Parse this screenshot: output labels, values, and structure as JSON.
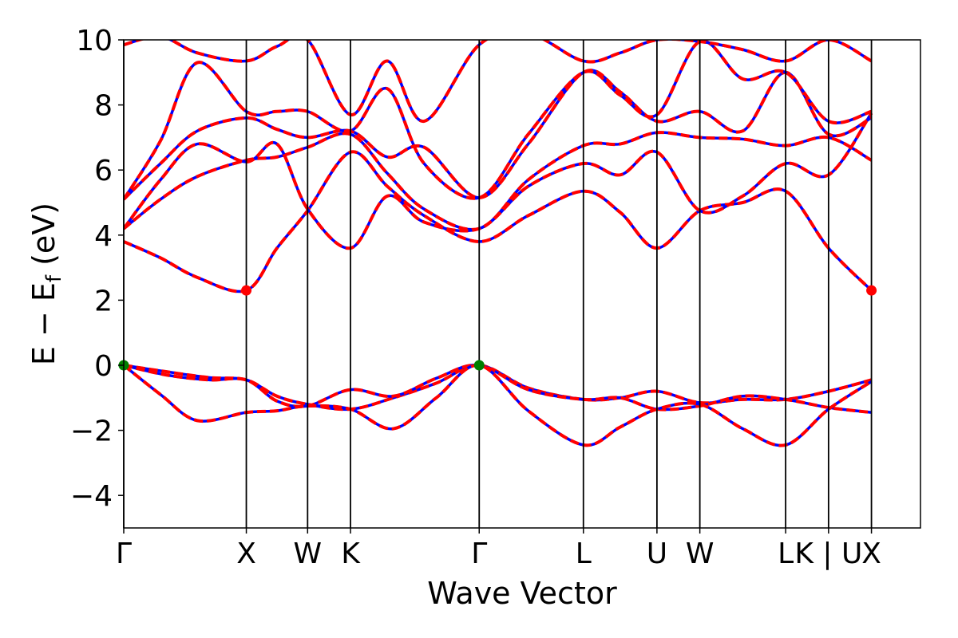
{
  "chart_data": {
    "type": "line",
    "xlabel": "Wave Vector",
    "ylabel": "E − E_f (eV)",
    "ylabel_parts": {
      "main": "E − E",
      "sub": "f",
      "unit": " (eV)"
    },
    "ylim": [
      -5,
      10
    ],
    "yticks": [
      -4,
      -2,
      0,
      2,
      4,
      6,
      8,
      10
    ],
    "ytick_labels": [
      "−4",
      "−2",
      "0",
      "2",
      "4",
      "6",
      "8",
      "10"
    ],
    "xlim": [
      0,
      6.5
    ],
    "kpoints": [
      {
        "label": "Γ",
        "x": 0.0
      },
      {
        "label": "X",
        "x": 1.0
      },
      {
        "label": "W",
        "x": 1.5
      },
      {
        "label": "K",
        "x": 1.85
      },
      {
        "label": "Γ",
        "x": 2.9
      },
      {
        "label": "L",
        "x": 3.75
      },
      {
        "label": "U",
        "x": 4.35
      },
      {
        "label": "W",
        "x": 4.7
      },
      {
        "label": "L",
        "x": 5.4
      },
      {
        "label": "K | U",
        "x": 5.75
      },
      {
        "label": "X",
        "x": 6.1
      }
    ],
    "vlines": [
      0.0,
      1.0,
      1.5,
      1.85,
      2.9,
      3.75,
      4.35,
      4.7,
      5.4,
      5.75,
      6.1
    ],
    "series_style": {
      "red": "#ff0000",
      "blue": "#0000ff",
      "vbm_marker": "#007f00",
      "cbm_marker": "#ff0000",
      "grid": "#000000"
    },
    "bands": [
      {
        "x": [
          0,
          0.35,
          0.7,
          1.0,
          1.25,
          1.5,
          1.85,
          2.2,
          2.55,
          2.9,
          3.3,
          3.75,
          4.05,
          4.35,
          4.7,
          5.05,
          5.4,
          5.75,
          6.1
        ],
        "y": [
          0,
          -0.2,
          -0.38,
          -0.45,
          -0.95,
          -1.2,
          -1.35,
          -1.0,
          -0.55,
          0,
          -0.7,
          -1.05,
          -1.0,
          -0.8,
          -1.15,
          -1.05,
          -1.05,
          -0.8,
          -0.45
        ]
      },
      {
        "x": [
          0,
          0.35,
          0.7,
          1.0,
          1.25,
          1.5,
          1.85,
          2.2,
          2.55,
          2.9,
          3.3,
          3.75,
          4.05,
          4.35,
          4.7,
          5.05,
          5.4,
          5.75,
          6.1
        ],
        "y": [
          0,
          -0.3,
          -0.45,
          -0.45,
          -1.1,
          -1.25,
          -0.75,
          -0.95,
          -0.4,
          0,
          -0.75,
          -1.05,
          -1.0,
          -1.35,
          -1.25,
          -0.95,
          -1.05,
          -1.3,
          -1.45
        ]
      },
      {
        "x": [
          0,
          0.3,
          0.6,
          1.0,
          1.25,
          1.5,
          1.85,
          2.2,
          2.55,
          2.9,
          3.3,
          3.75,
          4.05,
          4.35,
          4.7,
          5.05,
          5.4,
          5.75,
          6.1
        ],
        "y": [
          0,
          -0.9,
          -1.7,
          -1.45,
          -1.4,
          -1.25,
          -1.35,
          -1.95,
          -1.0,
          0,
          -1.4,
          -2.45,
          -1.9,
          -1.35,
          -1.2,
          -1.95,
          -2.45,
          -1.35,
          -0.5
        ]
      },
      {
        "x": [
          0,
          0.3,
          0.6,
          1.0,
          1.25,
          1.5,
          1.85,
          2.15,
          2.45,
          2.9,
          3.3,
          3.75,
          4.05,
          4.35,
          4.7,
          5.05,
          5.4,
          5.75,
          6.1
        ],
        "y": [
          3.8,
          3.3,
          2.7,
          2.3,
          3.6,
          4.75,
          6.55,
          5.5,
          4.6,
          3.8,
          4.6,
          5.35,
          4.7,
          3.6,
          4.75,
          5.0,
          5.35,
          3.6,
          2.3
        ]
      },
      {
        "x": [
          0,
          0.3,
          0.6,
          1.0,
          1.25,
          1.5,
          1.85,
          2.15,
          2.45,
          2.9,
          3.3,
          3.75,
          4.05,
          4.35,
          4.7,
          5.05,
          5.4,
          5.75,
          6.1
        ],
        "y": [
          4.2,
          5.1,
          5.8,
          6.3,
          6.4,
          6.7,
          7.1,
          5.9,
          4.8,
          4.2,
          5.7,
          6.75,
          6.8,
          7.15,
          7.0,
          6.95,
          6.75,
          7.0,
          6.3
        ]
      },
      {
        "x": [
          0,
          0.3,
          0.6,
          1.0,
          1.25,
          1.5,
          1.85,
          2.15,
          2.45,
          2.9,
          3.3,
          3.75,
          4.05,
          4.35,
          4.7,
          5.05,
          5.4,
          5.75,
          6.1
        ],
        "y": [
          4.2,
          5.7,
          6.8,
          6.25,
          6.8,
          4.8,
          3.6,
          5.2,
          4.4,
          4.2,
          5.5,
          6.2,
          5.85,
          6.55,
          4.75,
          5.2,
          6.2,
          5.85,
          7.75
        ]
      },
      {
        "x": [
          0,
          0.3,
          0.6,
          1.0,
          1.25,
          1.5,
          1.85,
          2.15,
          2.45,
          2.9,
          3.3,
          3.75,
          4.05,
          4.35,
          4.7,
          5.05,
          5.4,
          5.75,
          6.1
        ],
        "y": [
          5.1,
          6.2,
          7.2,
          7.6,
          7.25,
          7.0,
          7.2,
          6.4,
          6.7,
          5.15,
          6.8,
          9.0,
          8.4,
          7.5,
          7.8,
          7.2,
          9.0,
          7.1,
          7.6
        ]
      },
      {
        "x": [
          0,
          0.3,
          0.6,
          1.0,
          1.25,
          1.5,
          1.85,
          2.15,
          2.45,
          2.9,
          3.3,
          3.75,
          4.05,
          4.35,
          4.7,
          5.05,
          5.4,
          5.75,
          6.1
        ],
        "y": [
          5.1,
          6.9,
          9.3,
          7.8,
          7.8,
          7.8,
          7.2,
          8.5,
          6.2,
          5.15,
          7.1,
          9.0,
          8.3,
          7.7,
          9.95,
          8.8,
          9.0,
          7.5,
          7.8
        ]
      },
      {
        "x": [
          0,
          0.3,
          0.6,
          1.0,
          1.25,
          1.5,
          1.85,
          2.15,
          2.45,
          2.9,
          3.3,
          3.75,
          4.05,
          4.35,
          4.7,
          5.05,
          5.4,
          5.75,
          6.1
        ],
        "y": [
          9.85,
          10.1,
          9.6,
          9.35,
          9.8,
          10.0,
          7.7,
          9.35,
          7.5,
          9.85,
          10.2,
          9.35,
          9.6,
          10.0,
          9.95,
          9.7,
          9.35,
          10.0,
          9.35
        ]
      }
    ],
    "markers": [
      {
        "kind": "vbm",
        "x": 0.0,
        "y": 0.0
      },
      {
        "kind": "vbm",
        "x": 2.9,
        "y": 0.0
      },
      {
        "kind": "cbm",
        "x": 1.0,
        "y": 2.3
      },
      {
        "kind": "cbm",
        "x": 6.1,
        "y": 2.3
      }
    ]
  }
}
